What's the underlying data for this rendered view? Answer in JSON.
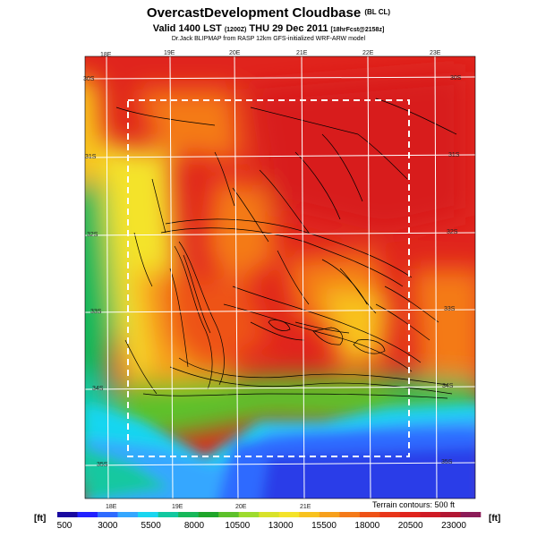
{
  "title": {
    "main": "OvercastDevelopment Cloudbase",
    "suffix": "(BL CL)",
    "valid": "Valid 1400 LST",
    "valid_code": "(1200Z)",
    "valid_date": "THU 29 Dec 2011",
    "valid_run": "[18hrFcst@2158z]",
    "credit": "Dr.Jack BLIPMAP from RASP 12km GFS-initialized WRF-ARW model"
  },
  "map": {
    "lon_top": [
      "18E",
      "19E",
      "20E",
      "21E",
      "22E",
      "23E"
    ],
    "lon_bottom": [
      "18E",
      "19E",
      "20E",
      "21E"
    ],
    "lat_left": [
      "30S",
      "31S",
      "32S",
      "33S",
      "34S",
      "35S"
    ],
    "lat_right": [
      "30S",
      "31S",
      "32S",
      "33S",
      "34S",
      "35S"
    ],
    "terrain_note": "Terrain contours: 500 ft"
  },
  "colorbar": {
    "unit_left": "[ft]",
    "unit_right": "[ft]",
    "ticks": [
      "500",
      "3000",
      "5500",
      "8000",
      "10500",
      "13000",
      "15500",
      "18000",
      "20500",
      "23000"
    ],
    "colors": [
      "#1a0aa0",
      "#2222ff",
      "#2f6bff",
      "#35a7ff",
      "#19d6f0",
      "#12c8a0",
      "#17b85a",
      "#1fa52a",
      "#5dc12b",
      "#9edb2e",
      "#d8e22a",
      "#f4e32a",
      "#f8c21f",
      "#f7a01c",
      "#f47a19",
      "#ee5217",
      "#e8361a",
      "#e0241d",
      "#cf1b25",
      "#b21733",
      "#8c1c58"
    ]
  }
}
